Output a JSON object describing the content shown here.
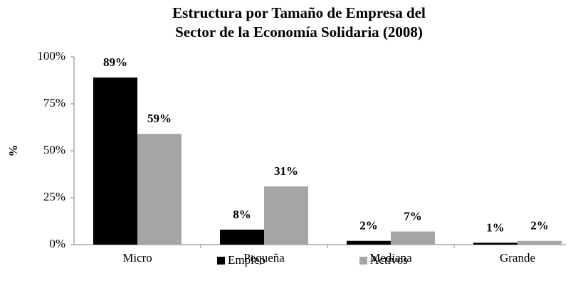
{
  "chart_data": {
    "type": "bar",
    "title": [
      "Estructura por Tamaño de Empresa  del",
      "Sector de la Economía Solidaria (2008)"
    ],
    "y_label": "%",
    "categories": [
      "Micro",
      "Pequeña",
      "Mediana",
      "Grande"
    ],
    "series": [
      {
        "name": "Empleo",
        "color": "#000000",
        "values": [
          89,
          8,
          2,
          1
        ],
        "value_labels": [
          "89%",
          "8%",
          "2%",
          "1%"
        ]
      },
      {
        "name": "Activos",
        "color": "#a6a6a6",
        "values": [
          59,
          31,
          7,
          2
        ],
        "value_labels": [
          "59%",
          "31%",
          "7%",
          "2%"
        ]
      }
    ],
    "ylim": [
      0,
      100
    ],
    "yticks": [
      {
        "value": 0,
        "label": "0%"
      },
      {
        "value": 25,
        "label": "25%"
      },
      {
        "value": 50,
        "label": "50%"
      },
      {
        "value": 75,
        "label": "75%"
      },
      {
        "value": 100,
        "label": "100%"
      }
    ],
    "grid": false,
    "legend": "bottom"
  }
}
